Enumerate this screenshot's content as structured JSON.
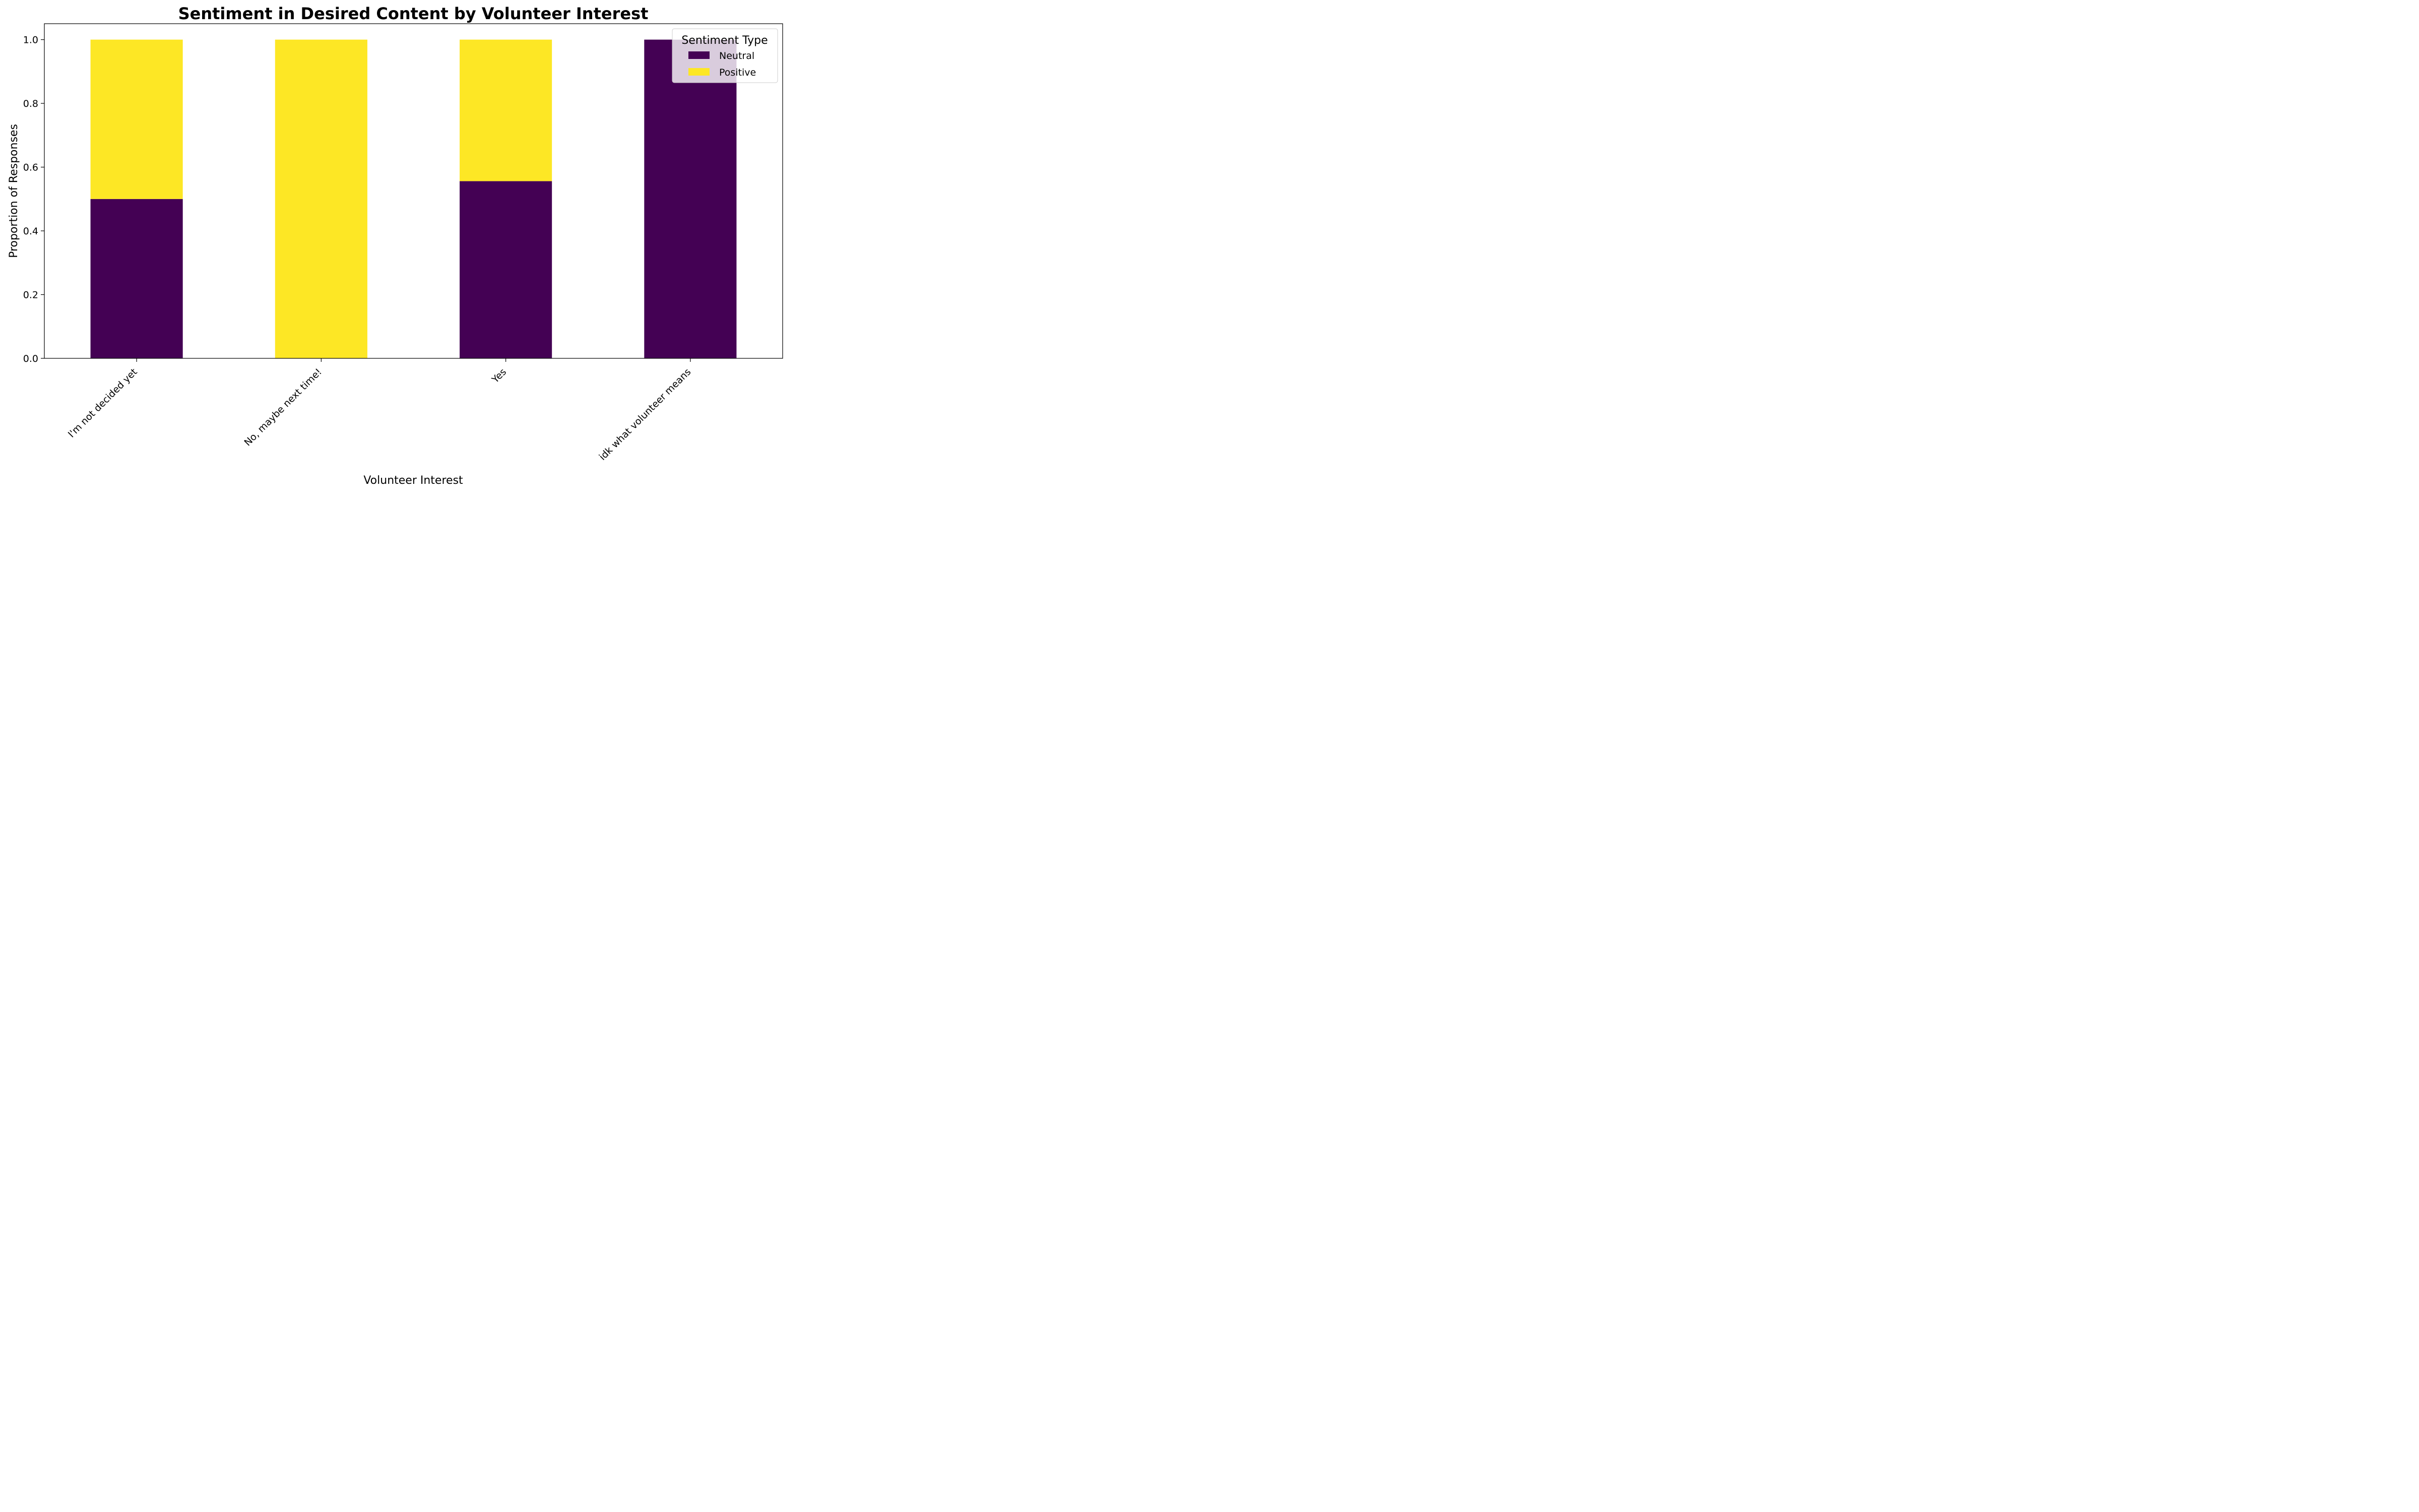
{
  "chart_data": {
    "type": "bar",
    "stacked": true,
    "title": "Sentiment in Desired Content by Volunteer Interest",
    "xlabel": "Volunteer Interest",
    "ylabel": "Proportion of Responses",
    "categories": [
      "I'm not decided yet",
      "No, maybe next time!",
      "Yes",
      "idk what volunteer means"
    ],
    "series": [
      {
        "name": "Neutral",
        "color": "#440154",
        "values": [
          0.5,
          0.0,
          0.556,
          1.0
        ]
      },
      {
        "name": "Positive",
        "color": "#fde725",
        "values": [
          0.5,
          1.0,
          0.444,
          0.0
        ]
      }
    ],
    "ylim": [
      0,
      1.05
    ],
    "yticks": [
      0.0,
      0.2,
      0.4,
      0.6,
      0.8,
      1.0
    ],
    "ytick_labels": [
      "0.0",
      "0.2",
      "0.4",
      "0.6",
      "0.8",
      "1.0"
    ],
    "grid": false,
    "legend": {
      "title": "Sentiment Type",
      "position": "top-right"
    }
  }
}
